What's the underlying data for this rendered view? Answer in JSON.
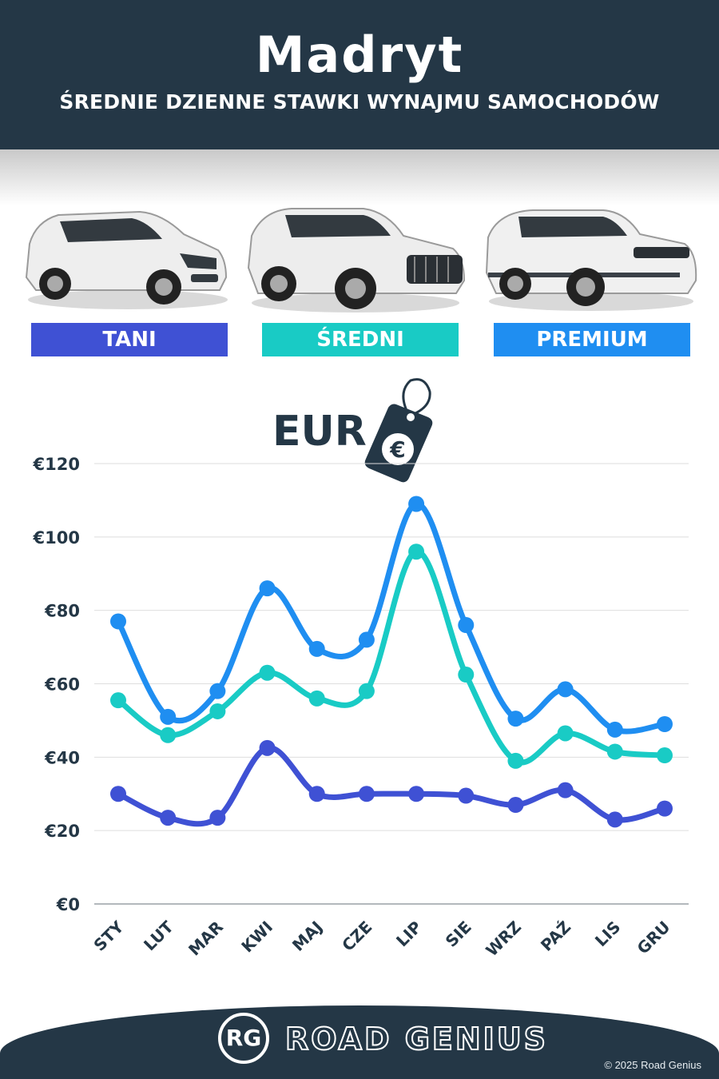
{
  "header": {
    "title": "Madryt",
    "subtitle": "ŚREDNIE DZIENNE STAWKI WYNAJMU SAMOCHODÓW"
  },
  "cars": [
    {
      "label": "TANI",
      "color": "#3f51d4",
      "icon": "hatchback-car-icon"
    },
    {
      "label": "ŚREDNI",
      "color": "#19cbc5",
      "icon": "suv-car-icon"
    },
    {
      "label": "PREMIUM",
      "color": "#1f8ef1",
      "icon": "luxury-suv-car-icon"
    }
  ],
  "currency": {
    "label": "EUR",
    "icon": "price-tag-euro-icon",
    "symbol": "€"
  },
  "chart_data": {
    "type": "line",
    "categories": [
      "STY",
      "LUT",
      "MAR",
      "KWI",
      "MAJ",
      "CZE",
      "LIP",
      "SIE",
      "WRZ",
      "PAŹ",
      "LIS",
      "GRU"
    ],
    "series": [
      {
        "name": "PREMIUM",
        "color": "#1f8ef1",
        "values": [
          77,
          51,
          58,
          86,
          69.5,
          72,
          109,
          76,
          50.5,
          58.5,
          47.5,
          49
        ]
      },
      {
        "name": "ŚREDNI",
        "color": "#19cbc5",
        "values": [
          55.5,
          46,
          52.5,
          63,
          56,
          58,
          96,
          62.5,
          39,
          46.5,
          41.5,
          40.5
        ]
      },
      {
        "name": "TANI",
        "color": "#3f51d4",
        "values": [
          30,
          23.5,
          23.5,
          42.5,
          30,
          30,
          30,
          29.5,
          27,
          31,
          23,
          26
        ]
      }
    ],
    "y_ticks": [
      "€0",
      "€20",
      "€40",
      "€60",
      "€80",
      "€100",
      "€120"
    ],
    "ylim": [
      0,
      120
    ],
    "grid": true,
    "xlabel": "",
    "ylabel": ""
  },
  "footer": {
    "logo_mark": "RG",
    "brand": "ROAD GENIUS",
    "copyright": "© 2025 Road Genius"
  }
}
